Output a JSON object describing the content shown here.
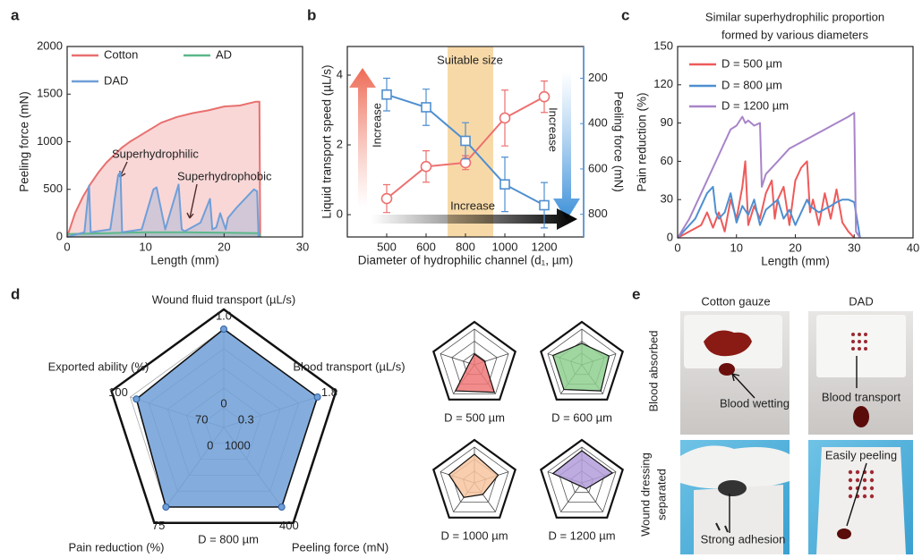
{
  "chart_data": [
    {
      "type": "area",
      "label": "a",
      "xlabel": "Length (mm)",
      "ylabel": "Peeling force (mN)",
      "xlim": [
        0,
        30
      ],
      "xticks": [
        0,
        10,
        20,
        30
      ],
      "ylim": [
        0,
        2000
      ],
      "yticks": [
        0,
        500,
        1000,
        1500,
        2000
      ],
      "legend": "upper left",
      "series": [
        {
          "name": "Cotton",
          "color": "#e8706f",
          "x": [
            0,
            1,
            2,
            3,
            4,
            5,
            6,
            7,
            8,
            9,
            10,
            12,
            14,
            16,
            18,
            20,
            22,
            24,
            24.5,
            24.6
          ],
          "values": [
            0,
            250,
            420,
            560,
            680,
            780,
            860,
            940,
            1000,
            1050,
            1100,
            1200,
            1260,
            1300,
            1330,
            1370,
            1380,
            1420,
            1420,
            0
          ]
        },
        {
          "name": "AD",
          "color": "#5cb88a",
          "x": [
            0,
            5,
            10,
            15,
            20,
            24.5,
            24.6
          ],
          "values": [
            30,
            40,
            50,
            50,
            45,
            40,
            0
          ]
        },
        {
          "name": "DAD",
          "color": "#6f9fd8",
          "x": [
            0,
            2.2,
            2.8,
            3.0,
            5.5,
            6.5,
            6.8,
            7.0,
            9.5,
            11,
            11.4,
            12.5,
            14.2,
            14.6,
            15,
            17,
            18.2,
            18.5,
            19,
            19.5,
            20.2,
            20.5,
            21.5,
            23.8,
            24.2,
            24.4
          ],
          "values": [
            0,
            50,
            540,
            50,
            80,
            650,
            680,
            50,
            80,
            500,
            520,
            80,
            550,
            80,
            60,
            150,
            400,
            80,
            100,
            250,
            80,
            200,
            300,
            500,
            480,
            0
          ]
        }
      ],
      "annotations": [
        "Superhydrophilic",
        "Superhydrophobic"
      ]
    },
    {
      "type": "line",
      "label": "b",
      "xlabel": "Diameter of hydrophilic channel (d₁, µm)",
      "ylabel": "Liquid transport speed (µL/s)",
      "y2label": "Peeling force (mN)",
      "categories": [
        "500",
        "600",
        "800",
        "1000",
        "1200"
      ],
      "ylim": [
        -0.64,
        4.82
      ],
      "yticks": [
        0,
        2,
        4
      ],
      "y2lim": [
        900,
        60
      ],
      "y2ticks": [
        200,
        400,
        600,
        800
      ],
      "series": [
        {
          "color": "#ee7070",
          "marker": "circle",
          "values": [
            0.46,
            1.38,
            1.49,
            2.77,
            3.38
          ],
          "errors": [
            0.4,
            0.45,
            0.2,
            0.8,
            0.45
          ]
        },
        {
          "color": "#4f8fd0",
          "marker": "square",
          "axis": "y2",
          "values": [
            272,
            328,
            476,
            668,
            760
          ],
          "errors": [
            72,
            80,
            80,
            120,
            100
          ]
        }
      ],
      "annotations": [
        "Suitable size",
        "Increase",
        "Increase",
        "Increase"
      ]
    },
    {
      "type": "line",
      "label": "c",
      "title": [
        "Similar superhydrophilic proportion",
        "formed by various diameters"
      ],
      "xlabel": "Length (mm)",
      "ylabel": "Pain reduction (%)",
      "xlim": [
        0,
        40
      ],
      "xticks": [
        0,
        10,
        20,
        30,
        40
      ],
      "ylim": [
        0,
        150
      ],
      "yticks": [
        0,
        30,
        60,
        90,
        120,
        150
      ],
      "legend": "upper left",
      "series": [
        {
          "name": "D = 500 µm",
          "color": "#ee5a5a",
          "x": [
            0,
            2,
            4,
            5,
            6,
            7,
            8,
            9,
            10,
            11,
            11.5,
            12,
            13,
            14,
            15,
            16,
            16.5,
            17,
            18,
            19,
            20,
            21,
            22,
            22.5,
            23,
            24,
            25,
            26,
            27,
            28,
            29,
            30
          ],
          "values": [
            0,
            5,
            10,
            20,
            8,
            20,
            5,
            30,
            15,
            40,
            60,
            10,
            25,
            15,
            35,
            45,
            15,
            30,
            40,
            10,
            45,
            55,
            60,
            20,
            30,
            10,
            35,
            15,
            38,
            12,
            5,
            0
          ]
        },
        {
          "name": "D = 800 µm",
          "color": "#4f8fd0",
          "x": [
            0,
            3,
            5,
            6,
            6.5,
            7,
            8,
            9,
            10,
            11,
            12,
            13,
            14,
            15,
            17,
            18,
            19,
            20,
            22,
            22.5,
            24,
            26,
            27,
            28,
            29,
            30,
            31
          ],
          "values": [
            0,
            15,
            35,
            40,
            20,
            15,
            20,
            35,
            12,
            25,
            18,
            30,
            10,
            22,
            30,
            15,
            22,
            10,
            30,
            25,
            20,
            25,
            28,
            30,
            30,
            28,
            0
          ]
        },
        {
          "name": "D = 1200 µm",
          "color": "#a784c9",
          "x": [
            0,
            2,
            4,
            6,
            8,
            9,
            10,
            11,
            11.5,
            12,
            13,
            14,
            14.3,
            15,
            17,
            19,
            21,
            23,
            25,
            27,
            29,
            30,
            30.3,
            31
          ],
          "values": [
            0,
            15,
            35,
            55,
            75,
            85,
            88,
            95,
            90,
            92,
            88,
            90,
            40,
            50,
            60,
            70,
            75,
            80,
            85,
            90,
            95,
            98,
            5,
            0
          ]
        }
      ]
    },
    {
      "type": "radar",
      "label": "d",
      "axes": [
        {
          "label": "Wound fluid transport (µL/s)",
          "lim": [
            0,
            1
          ],
          "ticks": [
            0,
            {
              "value": 1,
              "label": "1.0"
            }
          ]
        },
        {
          "label": "Blood transport (µL/s)",
          "lim": [
            0.3,
            1.8
          ],
          "ticks": [
            0.3,
            1.8
          ]
        },
        {
          "label": "Peeling force (mN)",
          "lim": [
            1000,
            400
          ],
          "ticks": [
            1000,
            400
          ]
        },
        {
          "label": "Pain reduction (%)",
          "lim": [
            0,
            75
          ],
          "ticks": [
            0,
            75
          ]
        },
        {
          "label": "Exported ability (%)",
          "lim": [
            70,
            100
          ],
          "ticks": [
            70,
            100
          ]
        }
      ],
      "series": [
        {
          "name": "D = 800 µm",
          "color": "#6f9fd8",
          "values": [
            1,
            1.8,
            400,
            75,
            98
          ]
        },
        {
          "name": "D = 500 µm",
          "color": "#f07878",
          "values": [
            0.3,
            0.75,
            430,
            67.5,
            74.5
          ]
        },
        {
          "name": "D = 600 µm",
          "color": "#8fcf8f",
          "values": [
            0.6,
            1.5,
            460,
            64,
            95.5
          ]
        },
        {
          "name": "D = 1000 µm",
          "color": "#f7c6a0",
          "values": [
            0.8,
            1.35,
            760,
            37.5,
            92.5
          ]
        },
        {
          "name": "D = 1200 µm",
          "color": "#b39ddb",
          "values": [
            0.9,
            1.65,
            880,
            7.5,
            95.5
          ]
        }
      ]
    }
  ],
  "photos": {
    "label": "e",
    "columns": [
      "Cotton gauze",
      "DAD"
    ],
    "rows": [
      [
        "Blood absorbed"
      ],
      [
        "Wound dressing",
        "separated"
      ]
    ],
    "annotations": [
      "Blood wetting",
      "Blood transport",
      "Strong adhesion",
      "Easily peeling"
    ]
  }
}
